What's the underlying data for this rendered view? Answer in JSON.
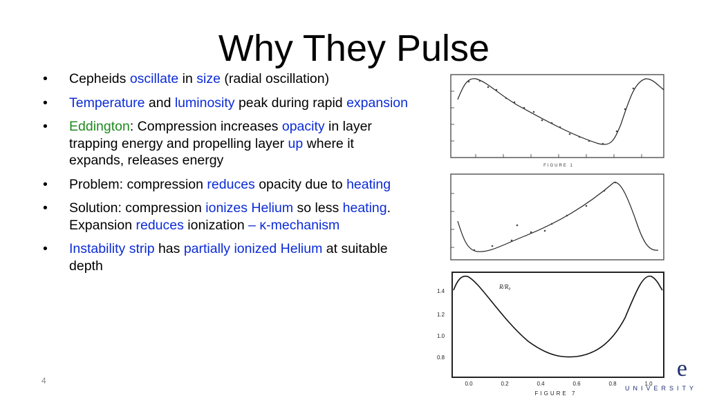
{
  "slide": {
    "title": "Why They Pulse",
    "page_number": "4",
    "bullets": [
      {
        "parts": [
          {
            "t": "Cepheids ",
            "c": ""
          },
          {
            "t": "oscillate",
            "c": "blue"
          },
          {
            "t": " in ",
            "c": ""
          },
          {
            "t": "size",
            "c": "blue"
          },
          {
            "t": " (radial oscillation)",
            "c": ""
          }
        ]
      },
      {
        "parts": [
          {
            "t": "Temperature",
            "c": "blue"
          },
          {
            "t": " and ",
            "c": ""
          },
          {
            "t": "luminosity",
            "c": "blue"
          },
          {
            "t": " peak during rapid ",
            "c": ""
          },
          {
            "t": "expansion",
            "c": "blue"
          }
        ]
      },
      {
        "parts": [
          {
            "t": "Eddington",
            "c": "green"
          },
          {
            "t": ": Compression increases ",
            "c": ""
          },
          {
            "t": "opacity",
            "c": "blue"
          },
          {
            "t": " in layer trapping energy and propelling layer ",
            "c": ""
          },
          {
            "t": "up",
            "c": "blue"
          },
          {
            "t": " where it expands, releases energy",
            "c": ""
          }
        ]
      },
      {
        "parts": [
          {
            "t": "Problem: compression ",
            "c": ""
          },
          {
            "t": "reduces",
            "c": "blue"
          },
          {
            "t": " opacity due to ",
            "c": ""
          },
          {
            "t": "heating",
            "c": "blue"
          }
        ]
      },
      {
        "parts": [
          {
            "t": "Solution: compression ",
            "c": ""
          },
          {
            "t": "ionizes Helium",
            "c": "blue"
          },
          {
            "t": " so less ",
            "c": ""
          },
          {
            "t": "heating",
            "c": "blue"
          },
          {
            "t": ". Expansion ",
            "c": ""
          },
          {
            "t": "reduces",
            "c": "blue"
          },
          {
            "t": " ionization ",
            "c": ""
          },
          {
            "t": "– κ-mechanism",
            "c": "blue"
          }
        ]
      },
      {
        "parts": [
          {
            "t": "Instability strip",
            "c": "blue"
          },
          {
            "t": " has ",
            "c": ""
          },
          {
            "t": "partially ionized Helium",
            "c": "blue"
          },
          {
            "t": " at suitable depth",
            "c": ""
          }
        ]
      }
    ]
  },
  "figures": {
    "fig1_caption": "FIGURE 1",
    "fig3_caption": "FIGURE 7",
    "fig3_label": "R/R₀",
    "fig3_yticks": [
      "1.4",
      "1.2",
      "1.0",
      "0.8"
    ],
    "fig3_xticks": [
      "0.0",
      "0.2",
      "0.4",
      "0.6",
      "0.8",
      "1.0"
    ]
  },
  "logo": {
    "letter": "e",
    "word": "UNIVERSITY",
    "color": "#1d2f6e"
  },
  "colors": {
    "blue": "#0b2bd6",
    "green": "#1f8a1f"
  }
}
